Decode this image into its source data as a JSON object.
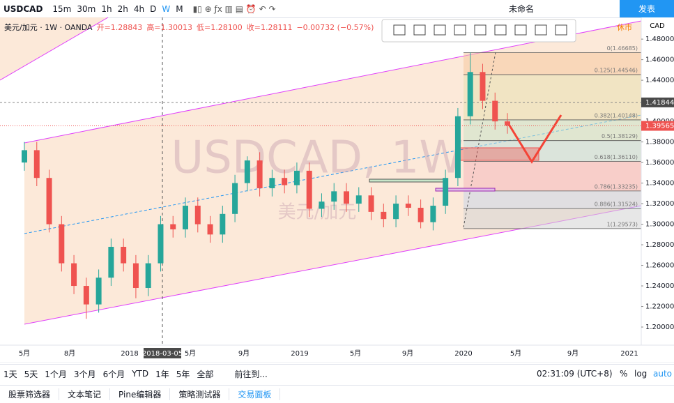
{
  "toolbar": {
    "symbol": "USDCAD",
    "intervals": [
      "15m",
      "30m",
      "1h",
      "2h",
      "4h",
      "D",
      "W",
      "M"
    ],
    "layout_name": "未命名",
    "publish": "发表"
  },
  "chart_data": {
    "type": "candlestick",
    "legend": [
      "美元/加元 · 1W · OANDA",
      "开=1.28843",
      "高=1.30013",
      "低=1.28100",
      "收=1.28111",
      "−0.00732 (−0.57%)"
    ],
    "watermark": "USDCAD, 1W",
    "watermark_sub": "美元/加元",
    "currency": "CAD",
    "status": "休市",
    "up_color": "#26a69a",
    "down_color": "#ef5350",
    "candles": [
      [
        1.36,
        1.38,
        1.352,
        1.372
      ],
      [
        1.372,
        1.38,
        1.337,
        1.345
      ],
      [
        1.345,
        1.353,
        1.292,
        1.3
      ],
      [
        1.3,
        1.308,
        1.254,
        1.262
      ],
      [
        1.262,
        1.27,
        1.232,
        1.24
      ],
      [
        1.24,
        1.248,
        1.208,
        1.222
      ],
      [
        1.222,
        1.256,
        1.214,
        1.248
      ],
      [
        1.248,
        1.286,
        1.24,
        1.278
      ],
      [
        1.278,
        1.286,
        1.254,
        1.262
      ],
      [
        1.262,
        1.27,
        1.228,
        1.238
      ],
      [
        1.238,
        1.27,
        1.23,
        1.262
      ],
      [
        1.262,
        1.308,
        1.254,
        1.3
      ],
      [
        1.3,
        1.308,
        1.287,
        1.295
      ],
      [
        1.295,
        1.326,
        1.287,
        1.318
      ],
      [
        1.318,
        1.326,
        1.292,
        1.3
      ],
      [
        1.3,
        1.308,
        1.282,
        1.29
      ],
      [
        1.29,
        1.318,
        1.282,
        1.31
      ],
      [
        1.31,
        1.348,
        1.302,
        1.34
      ],
      [
        1.34,
        1.366,
        1.332,
        1.362
      ],
      [
        1.362,
        1.37,
        1.327,
        1.335
      ],
      [
        1.335,
        1.353,
        1.327,
        1.345
      ],
      [
        1.345,
        1.353,
        1.33,
        1.338
      ],
      [
        1.338,
        1.36,
        1.33,
        1.352
      ],
      [
        1.352,
        1.36,
        1.307,
        1.315
      ],
      [
        1.315,
        1.33,
        1.307,
        1.322
      ],
      [
        1.322,
        1.34,
        1.314,
        1.332
      ],
      [
        1.332,
        1.34,
        1.312,
        1.32
      ],
      [
        1.32,
        1.336,
        1.312,
        1.328
      ],
      [
        1.328,
        1.336,
        1.304,
        1.312
      ],
      [
        1.312,
        1.32,
        1.297,
        1.305
      ],
      [
        1.305,
        1.328,
        1.297,
        1.32
      ],
      [
        1.32,
        1.328,
        1.308,
        1.316
      ],
      [
        1.316,
        1.324,
        1.296,
        1.302
      ],
      [
        1.302,
        1.326,
        1.294,
        1.318
      ],
      [
        1.318,
        1.353,
        1.31,
        1.345
      ],
      [
        1.345,
        1.413,
        1.337,
        1.405
      ],
      [
        1.405,
        1.467,
        1.397,
        1.448
      ],
      [
        1.448,
        1.456,
        1.412,
        1.42
      ],
      [
        1.42,
        1.428,
        1.392,
        1.4
      ],
      [
        1.4,
        1.408,
        1.388,
        1.396
      ]
    ],
    "ylim": [
      1.1824,
      1.5011
    ],
    "yticks": [
      {
        "value": 1.2,
        "label": "1.20000"
      },
      {
        "value": 1.22,
        "label": "1.22000"
      },
      {
        "value": 1.24,
        "label": "1.24000"
      },
      {
        "value": 1.26,
        "label": "1.26000"
      },
      {
        "value": 1.28,
        "label": "1.28000"
      },
      {
        "value": 1.3,
        "label": "1.30000"
      },
      {
        "value": 1.32,
        "label": "1.32000"
      },
      {
        "value": 1.34,
        "label": "1.34000"
      },
      {
        "value": 1.36,
        "label": "1.36000"
      },
      {
        "value": 1.38,
        "label": "1.38000"
      },
      {
        "value": 1.4,
        "label": "1.40000"
      },
      {
        "value": 1.42,
        "label": "1.42000"
      },
      {
        "value": 1.44,
        "label": "1.44000"
      },
      {
        "value": 1.46,
        "label": "1.46000"
      },
      {
        "value": 1.48,
        "label": "1.48000"
      }
    ],
    "x_labels": [
      "5月",
      "8月",
      "2018",
      "5月",
      "9月",
      "2019",
      "5月",
      "9月",
      "2020",
      "5月",
      "9月",
      "2021"
    ],
    "crosshair_date": "2018-03-05",
    "crosshair_price": 1.41844,
    "last_price": 1.39565,
    "fib_levels": [
      {
        "value": 1.46685,
        "label": "0(1.46685)"
      },
      {
        "value": 1.44546,
        "label": "0.125(1.44546)"
      },
      {
        "value": 1.40148,
        "label": "0.382(1.40148)"
      },
      {
        "value": 1.38129,
        "label": "0.5(1.38129)"
      },
      {
        "value": 1.3611,
        "label": "0.618(1.36110)"
      },
      {
        "value": 1.33235,
        "label": "0.786(1.33235)"
      },
      {
        "value": 1.31524,
        "label": "0.886(1.31524)"
      },
      {
        "value": 1.29573,
        "label": "1(1.29573)"
      }
    ]
  },
  "range_bar": {
    "ranges": [
      "1天",
      "5天",
      "1个月",
      "3个月",
      "6个月",
      "YTD",
      "1年",
      "5年",
      "全部"
    ],
    "goto": "前往到...",
    "clock": "02:31:09 (UTC+8)",
    "percent": "%",
    "log": "log",
    "auto": "auto"
  },
  "tabs": [
    "股票筛选器",
    "文本笔记",
    "Pine编辑器",
    "策略测试器",
    "交易面板"
  ]
}
